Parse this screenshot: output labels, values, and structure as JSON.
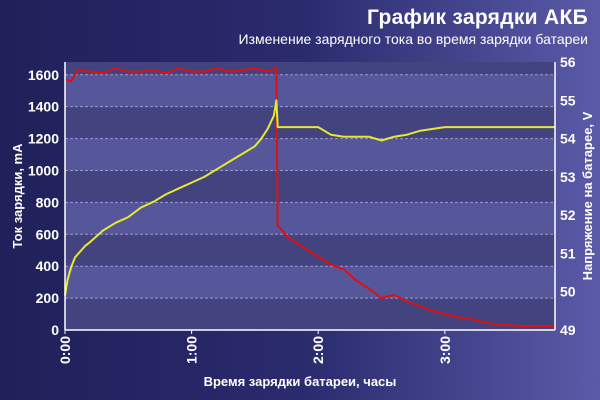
{
  "chart_data": {
    "type": "line",
    "title": "График зарядки АКБ",
    "subtitle": "Изменение зарядного тока во время зарядки батареи",
    "xlabel": "Время зарядки батареи, часы",
    "ylabel_left": "Ток зарядки, mA",
    "ylabel_right": "Напряжение на батарее, V",
    "x_ticks": [
      "0:00",
      "1:00",
      "2:00",
      "3:00"
    ],
    "y_left_ticks": [
      "0",
      "200",
      "400",
      "600",
      "800",
      "1000",
      "1200",
      "1400",
      "1600"
    ],
    "y_right_ticks": [
      "49",
      "50",
      "51",
      "52",
      "53",
      "54",
      "55",
      "56"
    ],
    "xlim_hours": [
      0,
      3.87
    ],
    "ylim_left": [
      0,
      1680
    ],
    "ylim_right": [
      49,
      56
    ],
    "grid": "horizontal",
    "series": [
      {
        "axis": "left",
        "color": "#dd1111",
        "x": [
          0,
          0.05,
          0.1,
          0.2,
          0.3,
          0.4,
          0.5,
          0.6,
          0.7,
          0.8,
          0.9,
          1.0,
          1.1,
          1.2,
          1.3,
          1.4,
          1.5,
          1.6,
          1.67,
          1.68,
          1.7,
          1.75,
          1.8,
          1.9,
          2.0,
          2.1,
          2.2,
          2.3,
          2.4,
          2.5,
          2.6,
          2.7,
          2.8,
          2.9,
          3.0,
          3.1,
          3.2,
          3.3,
          3.4,
          3.5,
          3.6,
          3.7,
          3.87
        ],
        "values": [
          1570,
          1560,
          1630,
          1620,
          1610,
          1640,
          1620,
          1620,
          1630,
          1610,
          1640,
          1620,
          1620,
          1640,
          1620,
          1630,
          1640,
          1620,
          1640,
          650,
          640,
          590,
          560,
          510,
          460,
          410,
          380,
          310,
          260,
          200,
          220,
          180,
          150,
          120,
          100,
          80,
          70,
          50,
          35,
          30,
          25,
          25,
          25
        ]
      },
      {
        "axis": "right",
        "color": "#e8e830",
        "x": [
          0,
          0.02,
          0.05,
          0.08,
          0.12,
          0.16,
          0.2,
          0.3,
          0.4,
          0.5,
          0.6,
          0.7,
          0.8,
          0.9,
          1.0,
          1.1,
          1.2,
          1.3,
          1.4,
          1.5,
          1.55,
          1.6,
          1.65,
          1.67,
          1.68,
          1.7,
          1.8,
          1.9,
          2.0,
          2.1,
          2.2,
          2.3,
          2.4,
          2.5,
          2.6,
          2.7,
          2.8,
          2.9,
          3.0,
          3.2,
          3.4,
          3.6,
          3.87
        ],
        "values": [
          49.9,
          50.3,
          50.65,
          50.9,
          51.05,
          51.2,
          51.3,
          51.6,
          51.8,
          51.95,
          52.2,
          52.35,
          52.55,
          52.7,
          52.85,
          53.0,
          53.2,
          53.4,
          53.6,
          53.8,
          54.0,
          54.25,
          54.6,
          55.0,
          54.3,
          54.3,
          54.3,
          54.3,
          54.3,
          54.1,
          54.05,
          54.05,
          54.05,
          53.95,
          54.05,
          54.1,
          54.2,
          54.25,
          54.3,
          54.3,
          54.3,
          54.3,
          54.3
        ]
      }
    ]
  }
}
